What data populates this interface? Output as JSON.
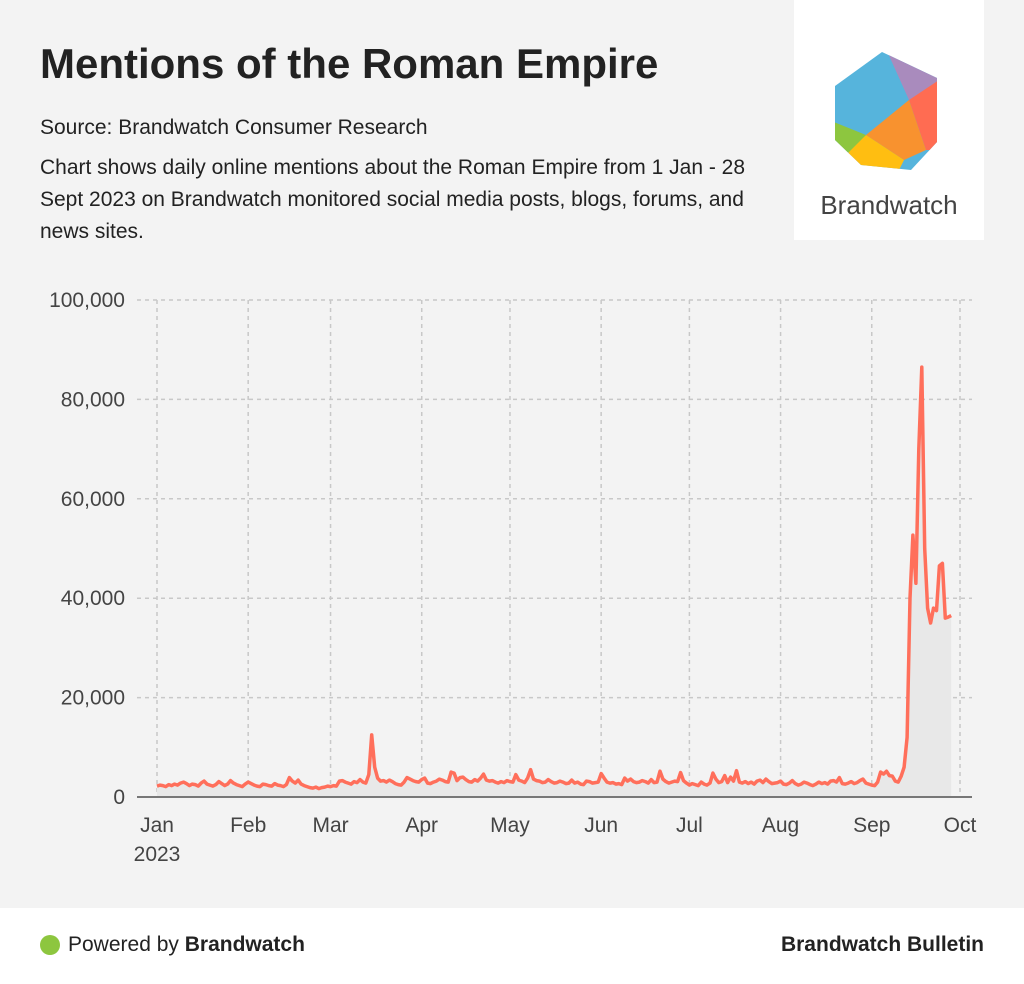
{
  "header": {
    "title": "Mentions of the Roman Empire",
    "source": "Source: Brandwatch Consumer Research",
    "description": "Chart shows daily online mentions about the Roman Empire from 1 Jan - 28 Sept 2023 on Brandwatch monitored social media posts, blogs, forums, and news sites."
  },
  "logo": {
    "text": "Brandwatch",
    "colors": [
      "#56b4dc",
      "#a98bbd",
      "#ff6c52",
      "#f8922f",
      "#ffbe11",
      "#8dc63f"
    ]
  },
  "footer": {
    "powered_prefix": "Powered by ",
    "powered_brand": "Brandwatch",
    "bulletin": "Brandwatch Bulletin",
    "dot_color": "#8dc63f"
  },
  "chart_data": {
    "type": "area",
    "title": "",
    "xlabel": "",
    "ylabel": "",
    "x_start": "2023-01-01",
    "x_end": "2023-09-28",
    "xlim": [
      "2023-01-01",
      "2023-10-01"
    ],
    "ylim": [
      0,
      100000
    ],
    "grid": true,
    "line_color": "#ff6f5b",
    "fill_color": "#e8e8e8",
    "y_ticks": [
      {
        "value": 0,
        "label": "0"
      },
      {
        "value": 20000,
        "label": "20,000"
      },
      {
        "value": 40000,
        "label": "40,000"
      },
      {
        "value": 60000,
        "label": "60,000"
      },
      {
        "value": 80000,
        "label": "80,000"
      },
      {
        "value": 100000,
        "label": "100,000"
      }
    ],
    "x_ticks": [
      {
        "date": "2023-01-01",
        "label": "Jan",
        "sublabel": "2023"
      },
      {
        "date": "2023-02-01",
        "label": "Feb"
      },
      {
        "date": "2023-03-01",
        "label": "Mar"
      },
      {
        "date": "2023-04-01",
        "label": "Apr"
      },
      {
        "date": "2023-05-01",
        "label": "May"
      },
      {
        "date": "2023-06-01",
        "label": "Jun"
      },
      {
        "date": "2023-07-01",
        "label": "Jul"
      },
      {
        "date": "2023-08-01",
        "label": "Aug"
      },
      {
        "date": "2023-09-01",
        "label": "Sep"
      },
      {
        "date": "2023-10-01",
        "label": "Oct"
      }
    ],
    "daily_values": [
      2200,
      2400,
      2300,
      2100,
      2500,
      2300,
      2600,
      2400,
      2800,
      3000,
      2700,
      2300,
      2600,
      2500,
      2200,
      2800,
      3200,
      2600,
      2400,
      2200,
      2500,
      3100,
      2700,
      2300,
      2600,
      3300,
      2800,
      2500,
      2300,
      2100,
      2600,
      3000,
      2700,
      2400,
      2200,
      2100,
      2600,
      2500,
      2300,
      2200,
      2700,
      2400,
      2300,
      2100,
      2500,
      3900,
      3200,
      2800,
      3400,
      2600,
      2300,
      2100,
      1900,
      1800,
      2000,
      1700,
      1900,
      2000,
      2200,
      2100,
      2300,
      2200,
      3200,
      3300,
      3000,
      2800,
      2600,
      3100,
      2900,
      3500,
      3000,
      2800,
      4500,
      12500,
      6000,
      3800,
      3200,
      3300,
      3000,
      3400,
      3100,
      2700,
      2500,
      2400,
      3000,
      3900,
      3600,
      3300,
      3100,
      3000,
      3500,
      3800,
      2800,
      2700,
      3000,
      3200,
      3600,
      3400,
      3100,
      3000,
      5000,
      4800,
      3300,
      3900,
      4000,
      3500,
      3100,
      3000,
      3500,
      3200,
      3800,
      4600,
      3400,
      3200,
      3300,
      3000,
      2800,
      3100,
      2900,
      3300,
      3100,
      3000,
      4500,
      3400,
      3200,
      2900,
      3800,
      5500,
      3600,
      3300,
      3200,
      2900,
      3000,
      3500,
      3100,
      2800,
      2900,
      3200,
      3000,
      2700,
      2800,
      3400,
      2800,
      3000,
      2600,
      2500,
      3200,
      3100,
      2800,
      2900,
      3000,
      4700,
      3800,
      3000,
      2800,
      2900,
      2600,
      2700,
      2500,
      3800,
      3200,
      3600,
      3100,
      2900,
      3000,
      3300,
      3100,
      2800,
      3500,
      2900,
      3000,
      5200,
      3600,
      3100,
      2800,
      3000,
      3200,
      3100,
      4900,
      3300,
      2800,
      2400,
      2700,
      2500,
      2300,
      3000,
      2600,
      2400,
      2800,
      4800,
      3600,
      2900,
      3100,
      4300,
      2900,
      4000,
      3200,
      5300,
      3000,
      2800,
      3100,
      2700,
      3000,
      2600,
      3200,
      3400,
      2900,
      3600,
      3100,
      2700,
      2800,
      2900,
      3200,
      2600,
      2500,
      2800,
      3300,
      2700,
      2400,
      2600,
      3000,
      2800,
      2500,
      2300,
      2600,
      3000,
      2700,
      2900,
      2600,
      3200,
      3300,
      3000,
      3900,
      2700,
      2600,
      2800,
      3100,
      2700,
      2900,
      3300,
      3600,
      2800,
      2600,
      2400,
      2300,
      3000,
      5000,
      4600,
      5200,
      4300,
      4200,
      3200,
      3000,
      4200,
      6000,
      12000,
      40000,
      52700,
      43000,
      70000,
      86500,
      50000,
      38000,
      35000,
      38000,
      37500,
      46500,
      47000,
      36000,
      36200,
      36500
    ]
  }
}
